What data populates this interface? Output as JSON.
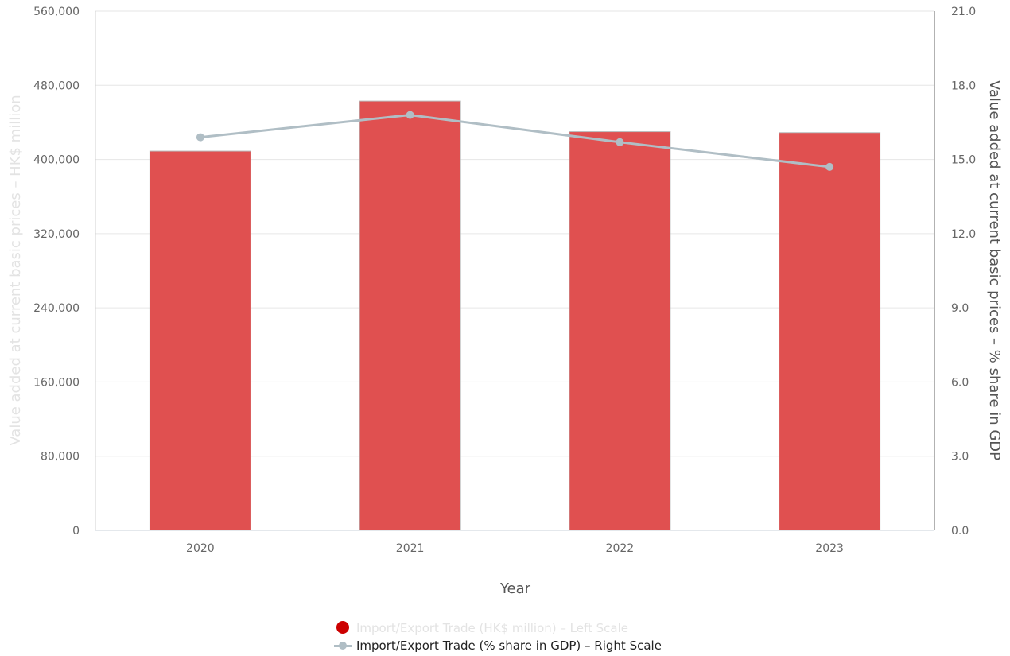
{
  "chart_data": {
    "type": "bar+line",
    "categories": [
      "2020",
      "2021",
      "2022",
      "2023"
    ],
    "xlabel": "Year",
    "left_axis": {
      "label": "Value added at current basic prices – HK$ million",
      "ylim": [
        0,
        560000
      ],
      "ticks": [
        "0",
        "80,000",
        "160,000",
        "240,000",
        "320,000",
        "400,000",
        "480,000",
        "560,000"
      ]
    },
    "right_axis": {
      "label": "Value added at current basic prices – % share in GDP",
      "ylim": [
        0,
        21
      ],
      "ticks": [
        "0.0",
        "3.0",
        "6.0",
        "9.0",
        "12.0",
        "15.0",
        "18.0",
        "21.0"
      ]
    },
    "series": [
      {
        "name": "Import/Export Trade (HK$ million) – Left Scale",
        "type": "bar",
        "axis": "left",
        "color": "#e05050",
        "legend_color": "#cc0000",
        "values": [
          409000,
          463000,
          430000,
          429000
        ]
      },
      {
        "name": "Import/Export Trade (% share in GDP) – Right Scale",
        "type": "line",
        "axis": "right",
        "color": "#b0bec5",
        "values": [
          15.9,
          16.8,
          15.7,
          14.7
        ]
      }
    ],
    "grid": true,
    "legend_position": "bottom-center"
  }
}
